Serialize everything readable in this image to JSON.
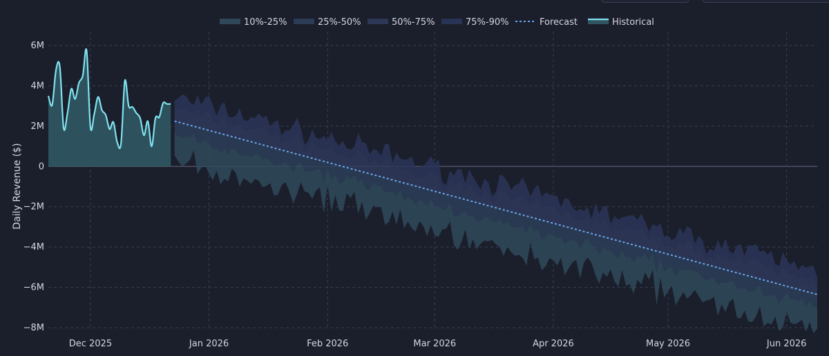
{
  "chart_data": {
    "type": "area",
    "title": "",
    "xlabel": "",
    "ylabel": "Daily Revenue ($)",
    "ylim": [
      -8000000,
      6000000
    ],
    "yticks": [
      {
        "value": 6000000,
        "label": "6M"
      },
      {
        "value": 4000000,
        "label": "4M"
      },
      {
        "value": 2000000,
        "label": "2M"
      },
      {
        "value": 0,
        "label": "0"
      },
      {
        "value": -2000000,
        "label": "−2M"
      },
      {
        "value": -4000000,
        "label": "−4M"
      },
      {
        "value": -6000000,
        "label": "−6M"
      },
      {
        "value": -8000000,
        "label": "−8M"
      }
    ],
    "xrange": [
      "2025-11-20",
      "2026-06-09"
    ],
    "xticks": [
      {
        "date": "2025-12-01",
        "label": "Dec 2025"
      },
      {
        "date": "2026-01-01",
        "label": "Jan 2026"
      },
      {
        "date": "2026-02-01",
        "label": "Feb 2026"
      },
      {
        "date": "2026-03-01",
        "label": "Mar 2026"
      },
      {
        "date": "2026-04-01",
        "label": "Apr 2026"
      },
      {
        "date": "2026-05-01",
        "label": "May 2026"
      },
      {
        "date": "2026-06-01",
        "label": "Jun 2026"
      }
    ],
    "legend": {
      "position": "top-center",
      "entries": [
        {
          "label": "10%-25%",
          "kind": "band"
        },
        {
          "label": "25%-50%",
          "kind": "band"
        },
        {
          "label": "50%-75%",
          "kind": "band"
        },
        {
          "label": "75%-90%",
          "kind": "band"
        },
        {
          "label": "Forecast",
          "kind": "dotted"
        },
        {
          "label": "Historical",
          "kind": "line"
        }
      ]
    },
    "colors": {
      "historical_line": "#7fe3f0",
      "historical_fill": "#2f5560",
      "forecast_line": "#6aa7ee",
      "band_10_25": "#2f4a5c",
      "band_25_50": "#2c3e58",
      "band_50_75": "#2e3a5a",
      "band_75_90": "#2a3558",
      "zero_line": "#585d6e"
    },
    "historical": {
      "start_date": "2025-11-20",
      "values": [
        3500000,
        3050000,
        4800000,
        4950000,
        1900000,
        2650000,
        3850000,
        3350000,
        4150000,
        4500000,
        5750000,
        1950000,
        2600000,
        3450000,
        2800000,
        2550000,
        1850000,
        2200000,
        1200000,
        1150000,
        4250000,
        3000000,
        2950000,
        2650000,
        2400000,
        1550000,
        2250000,
        1000000,
        2400000,
        2450000,
        3150000,
        3100000,
        3100000
      ]
    },
    "forecast": {
      "start_date": "2025-12-23",
      "end_date": "2026-06-09",
      "start_value": 2250000,
      "end_value": -6350000,
      "q10_offset": -1900000,
      "q25_offset": -650000,
      "q75_offset": 650000,
      "q90_offset": 1200000,
      "noise_amplitude": 450000
    }
  }
}
